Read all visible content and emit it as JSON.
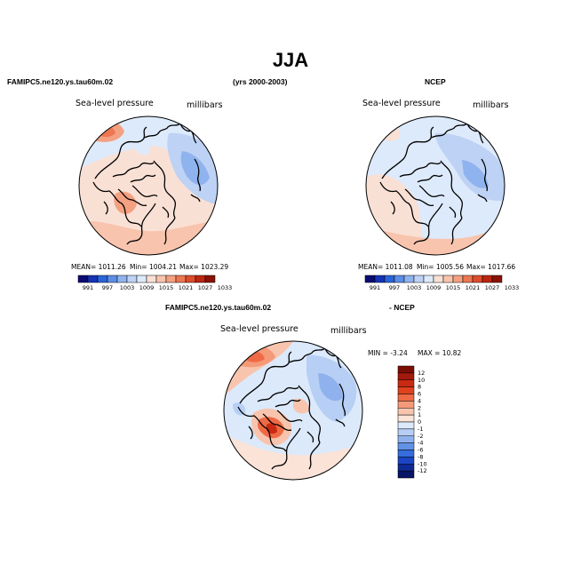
{
  "title": "JJA",
  "top_left": {
    "case_label": "FAMIPC5.ne120.ys.tau60m.02",
    "years_label": "(yrs 2000-2003)",
    "variable": "Sea-level pressure",
    "units": "millibars",
    "mean_text": "MEAN= 1011.26",
    "min_text": "Min= 1004.21",
    "max_text": "Max= 1023.29"
  },
  "top_right": {
    "case_label": "NCEP",
    "variable": "Sea-level pressure",
    "units": "millibars",
    "mean_text": "MEAN= 1011.08",
    "min_text": "Min= 1005.56",
    "max_text": "Max= 1017.66"
  },
  "bottom": {
    "case_label": "FAMIPC5.ne120.ys.tau60m.02",
    "minus_label": "- NCEP",
    "variable": "Sea-level pressure",
    "units": "millibars",
    "min_text": "MIN =   -3.24",
    "max_text": "MAX =  10.82"
  },
  "colorbar_abs": {
    "ticks": [
      "991",
      "997",
      "1003",
      "1009",
      "1015",
      "1021",
      "1027",
      "1033"
    ],
    "colors": [
      "#0b0b74",
      "#1533b5",
      "#2a64d8",
      "#5c8ee6",
      "#8fb3ee",
      "#bdd2f4",
      "#ddeafb",
      "#f9e0d5",
      "#f8c4ad",
      "#f4a181",
      "#ec7752",
      "#dd4c2b",
      "#bb2610",
      "#8a1206"
    ]
  },
  "colorbar_diff": {
    "ticks": [
      "12",
      "10",
      "8",
      "6",
      "4",
      "2",
      "1",
      "0",
      "-1",
      "-2",
      "-4",
      "-6",
      "-8",
      "-10",
      "-12"
    ],
    "colors": [
      "#7c0d05",
      "#a3190b",
      "#c92a12",
      "#e0421f",
      "#ee6a45",
      "#f49a78",
      "#f8c4ad",
      "#fbe3d7",
      "#dbe9fb",
      "#b7cff4",
      "#8fb2ee",
      "#6292e6",
      "#356ddc",
      "#1b45c2",
      "#0f2a95",
      "#081466"
    ]
  }
}
